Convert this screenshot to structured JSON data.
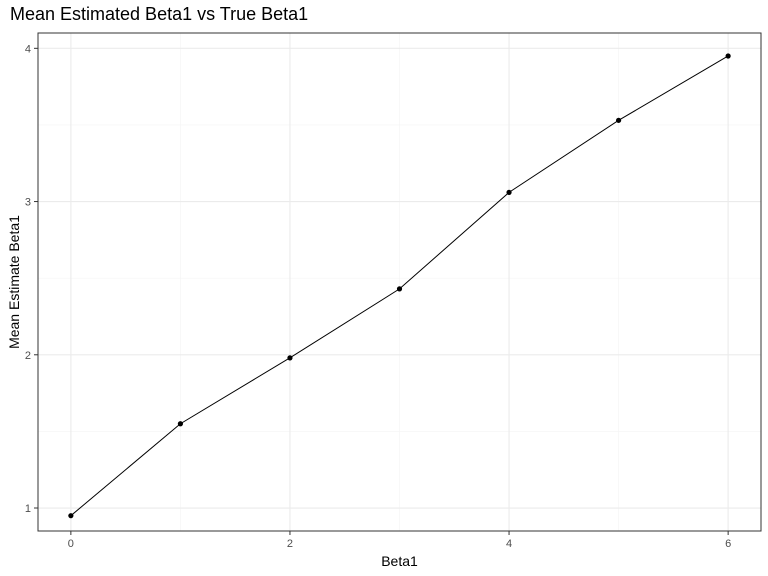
{
  "chart_data": {
    "type": "line",
    "title": "Mean Estimated Beta1 vs True Beta1",
    "xlabel": "Beta1",
    "ylabel": "Mean Estimate Beta1",
    "x": [
      0,
      1,
      2,
      3,
      4,
      5,
      6
    ],
    "series": [
      {
        "values": [
          0.95,
          1.55,
          1.98,
          2.43,
          3.06,
          3.53,
          3.95
        ]
      }
    ],
    "xlim": [
      -0.3,
      6.3
    ],
    "ylim": [
      0.85,
      4.1
    ],
    "x_ticks": [
      0,
      2,
      4,
      6
    ],
    "x_tick_labels": [
      "0",
      "2",
      "4",
      "6"
    ],
    "y_ticks": [
      1,
      2,
      3,
      4
    ],
    "y_tick_labels": [
      "1",
      "2",
      "3",
      "4"
    ],
    "grid": true,
    "colors": {
      "line": "#000000",
      "point": "#000000",
      "grid_major": "#ebebeb",
      "grid_minor": "#f4f4f4",
      "panel_border": "#333333",
      "tick_label": "#4d4d4d"
    }
  }
}
